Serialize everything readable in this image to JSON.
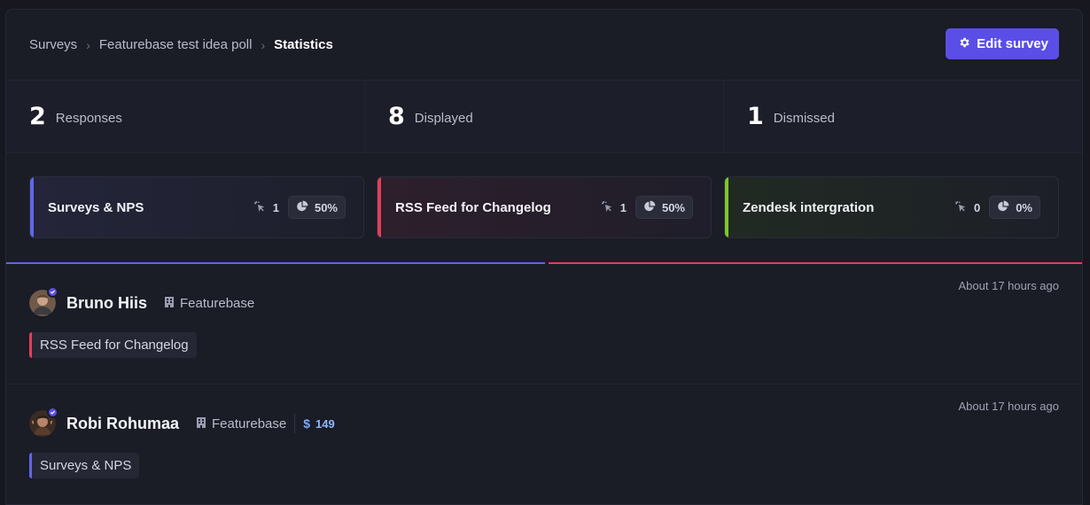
{
  "breadcrumb": {
    "items": [
      "Surveys",
      "Featurebase test idea poll"
    ],
    "current": "Statistics",
    "separator": "›"
  },
  "edit_button": {
    "label": "Edit survey",
    "icon": "gear-icon"
  },
  "stats": [
    {
      "value": "2",
      "label": "Responses"
    },
    {
      "value": "8",
      "label": "Displayed"
    },
    {
      "value": "1",
      "label": "Dismissed"
    }
  ],
  "options": [
    {
      "title": "Surveys & NPS",
      "clicks": "1",
      "percent": "50%",
      "accent": "#6266e8"
    },
    {
      "title": "RSS Feed for Changelog",
      "clicks": "1",
      "percent": "50%",
      "accent": "#e0405a"
    },
    {
      "title": "Zendesk intergration",
      "clicks": "0",
      "percent": "0%",
      "accent": "#7ac82a"
    }
  ],
  "distribution": [
    {
      "color": "#6266e8",
      "fraction": 0.5
    },
    {
      "color": "#e0405a",
      "fraction": 0.5
    }
  ],
  "responses": [
    {
      "name": "Bruno Hiis",
      "company": "Featurebase",
      "mrr": null,
      "time": "About 17 hours ago",
      "answer": "RSS Feed for Changelog",
      "answer_color": "#e0405a"
    },
    {
      "name": "Robi Rohumaa",
      "company": "Featurebase",
      "mrr_symbol": "$",
      "mrr": "149",
      "time": "About 17 hours ago",
      "answer": "Surveys & NPS",
      "answer_color": "#6266e8"
    }
  ]
}
